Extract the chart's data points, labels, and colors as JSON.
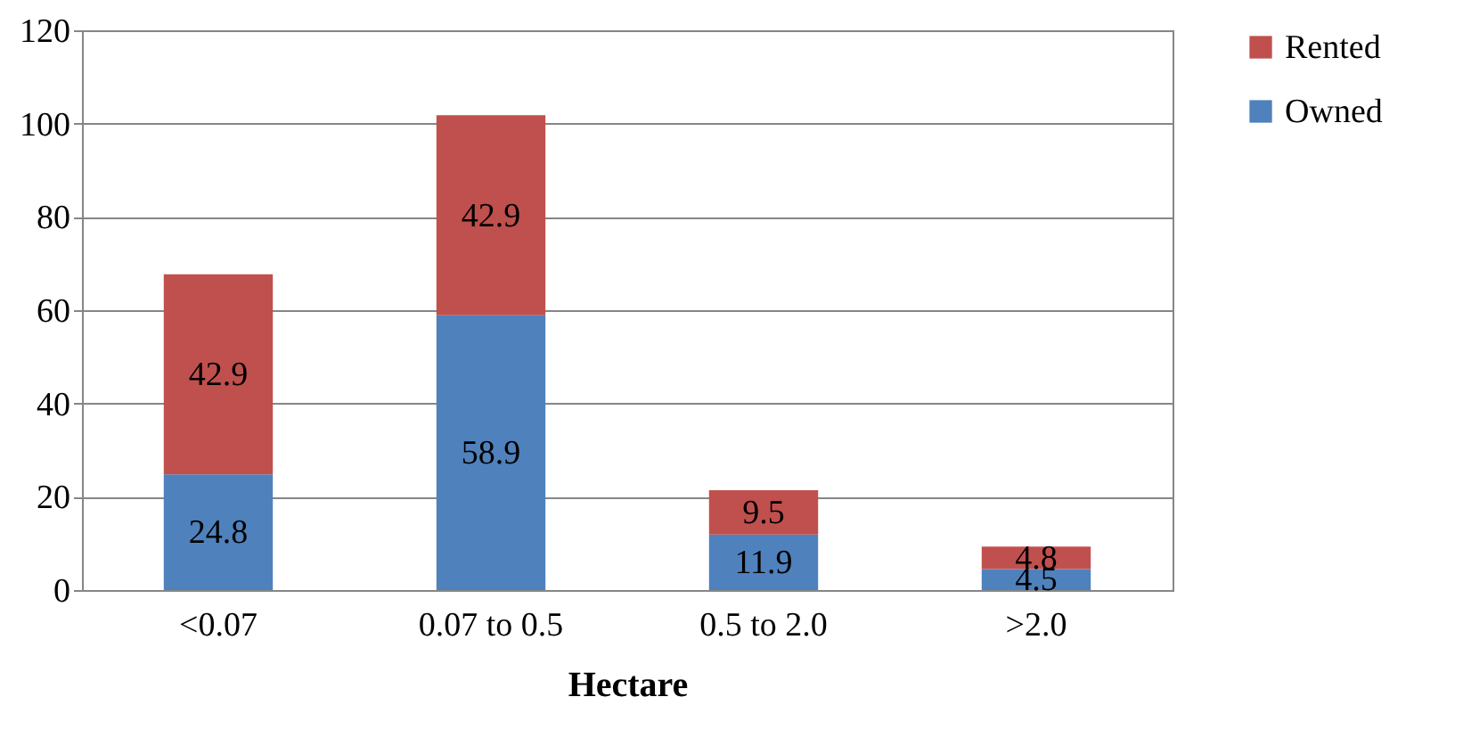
{
  "chart_data": {
    "type": "bar",
    "stacked": true,
    "xlabel": "Hectare",
    "categories": [
      "<0.07",
      "0.07 to 0.5",
      "0.5 to 2.0",
      ">2.0"
    ],
    "series": [
      {
        "name": "Owned",
        "color": "#4f81bd",
        "values": [
          24.8,
          58.9,
          11.9,
          4.5
        ]
      },
      {
        "name": "Rented",
        "color": "#c0504d",
        "values": [
          42.9,
          42.9,
          9.5,
          4.8
        ]
      }
    ],
    "ylim": [
      0,
      120
    ],
    "yticks": [
      0,
      20,
      40,
      60,
      80,
      100,
      120
    ],
    "grid": "y",
    "legend": "right",
    "data_labels": true
  }
}
